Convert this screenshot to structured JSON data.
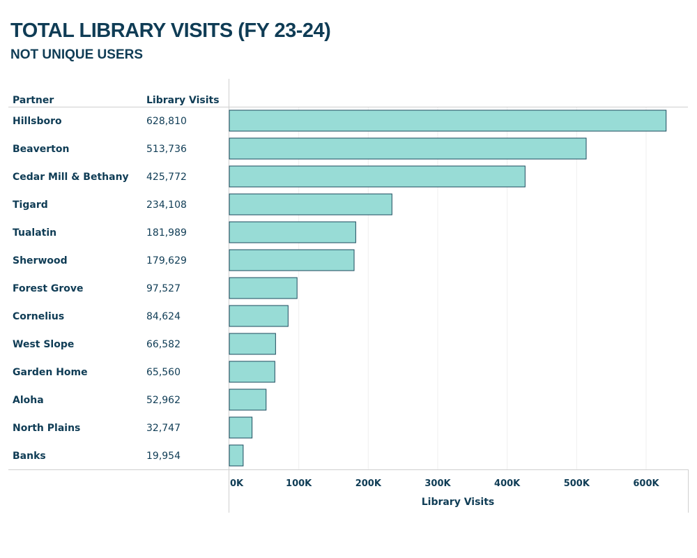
{
  "title": "TOTAL LIBRARY VISITS (FY 23-24)",
  "subtitle": "NOT UNIQUE USERS",
  "chart_data": {
    "type": "bar",
    "orientation": "horizontal",
    "column_headers": [
      "Partner",
      "Library Visits"
    ],
    "categories": [
      "Hillsboro",
      "Beaverton",
      "Cedar Mill & Bethany",
      "Tigard",
      "Tualatin",
      "Sherwood",
      "Forest Grove",
      "Cornelius",
      "West Slope",
      "Garden Home",
      "Aloha",
      "North Plains",
      "Banks"
    ],
    "values": [
      628810,
      513736,
      425772,
      234108,
      181989,
      179629,
      97527,
      84624,
      66582,
      65560,
      52962,
      32747,
      19954
    ],
    "value_labels": [
      "628,810",
      "513,736",
      "425,772",
      "234,108",
      "181,989",
      "179,629",
      "97,527",
      "84,624",
      "66,582",
      "65,560",
      "52,962",
      "32,747",
      "19,954"
    ],
    "xlabel": "Library Visits",
    "xlim": [
      0,
      660000
    ],
    "xticks": [
      0,
      100000,
      200000,
      300000,
      400000,
      500000,
      600000
    ],
    "xtick_labels": [
      "0K",
      "100K",
      "200K",
      "300K",
      "400K",
      "500K",
      "600K"
    ],
    "grid": true,
    "colors": {
      "bar_fill": "#98dcd6",
      "bar_stroke": "#1b4a5c",
      "text": "#0f3c55"
    }
  }
}
